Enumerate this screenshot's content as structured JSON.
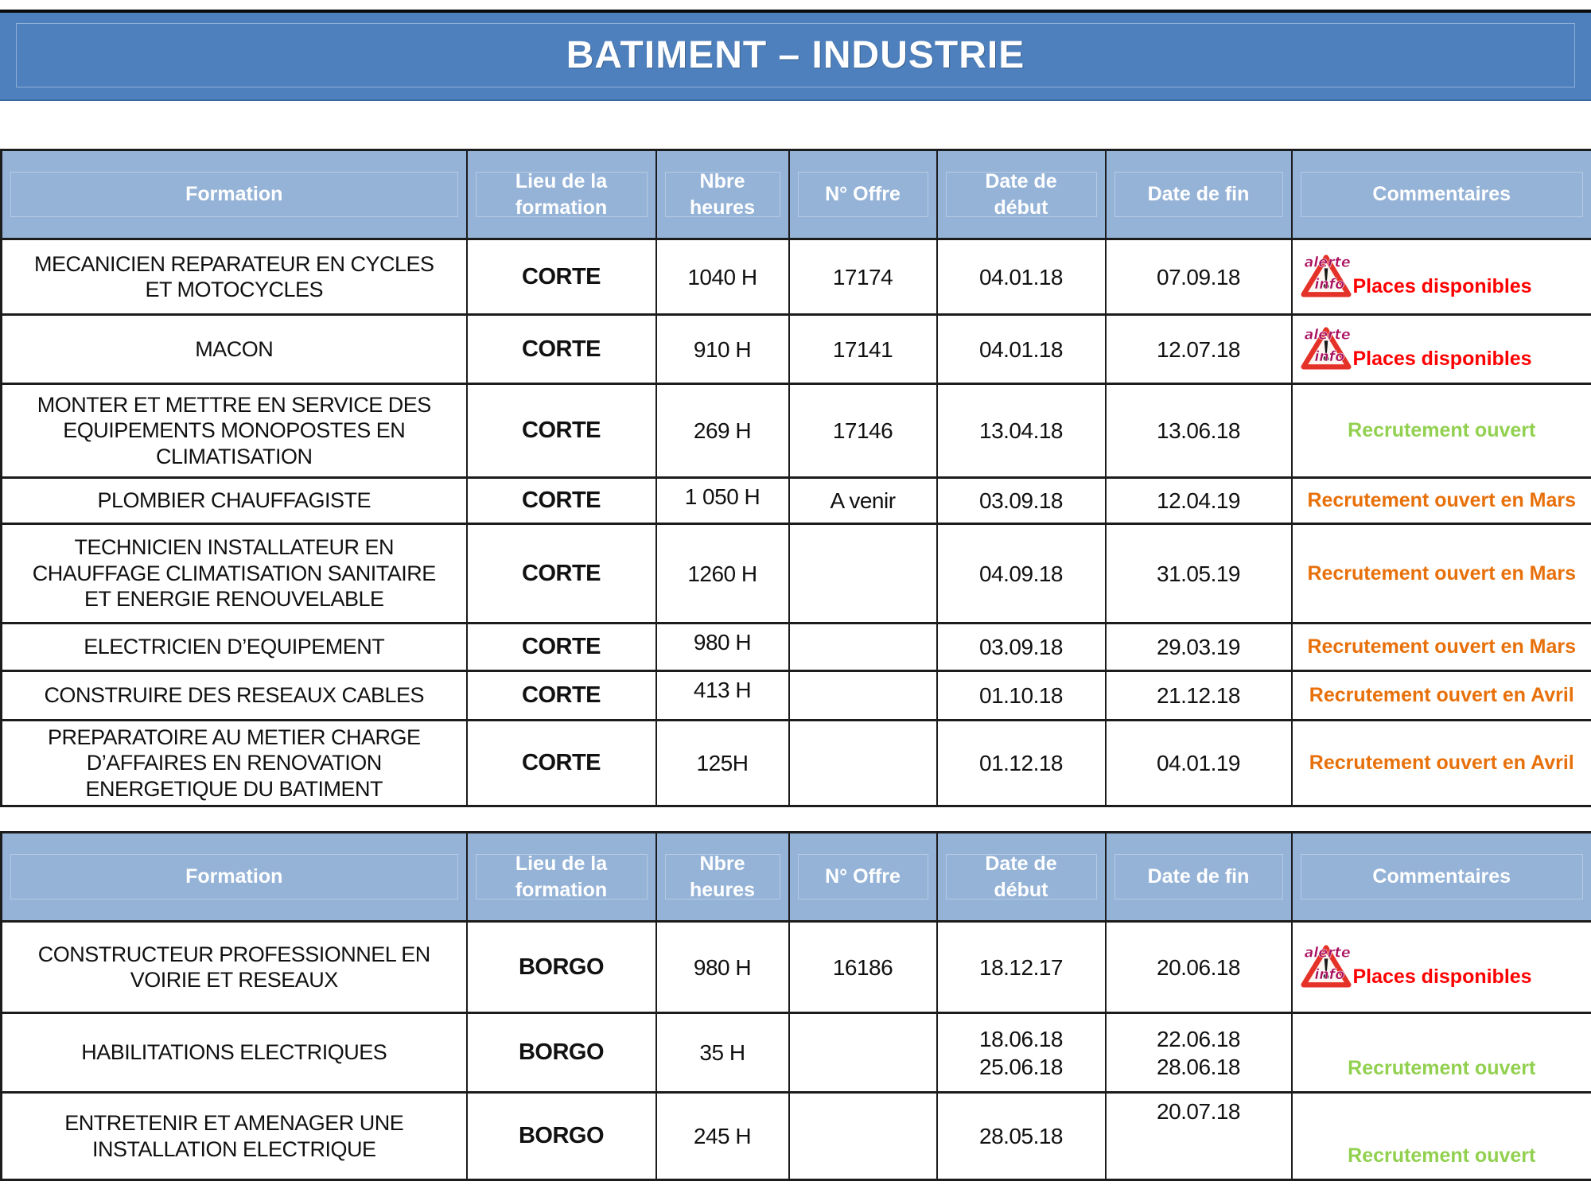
{
  "title": "BATIMENT – INDUSTRIE",
  "columns": [
    "Formation",
    "Lieu de la formation",
    "Nbre heures",
    "N° Offre",
    "Date de début",
    "Date de fin",
    "Commentaires"
  ],
  "theme": {
    "title_band_blue": "#4d80bd",
    "header_fill_blue": "#95b3d7",
    "border_black": "#1c1c1c",
    "comment_colors": {
      "alert": "#ff0000",
      "green": "#92d050",
      "orange": "#e8700a"
    },
    "alert_logo": {
      "icon": "alerte-info-icon",
      "word_top": "alerte",
      "word_bottom": "info",
      "triangle_red": "#e53228",
      "word_magenta": "#a9105f"
    }
  },
  "tables": [
    {
      "name": "formations-corte",
      "rows": [
        {
          "formation": "MECANICIEN REPARATEUR EN CYCLES ET MOTOCYCLES",
          "lieu": "CORTE",
          "heures": "1040 H",
          "offre": "17174",
          "debut": [
            "04.01.18"
          ],
          "fin": [
            "07.09.18"
          ],
          "comment": {
            "style": "alert",
            "text": "Places disponibles"
          }
        },
        {
          "formation": "MACON",
          "lieu": "CORTE",
          "heures": "910 H",
          "offre": "17141",
          "debut": [
            "04.01.18"
          ],
          "fin": [
            "12.07.18"
          ],
          "comment": {
            "style": "alert",
            "text": "Places disponibles"
          }
        },
        {
          "formation": "MONTER ET METTRE EN SERVICE DES EQUIPEMENTS MONOPOSTES EN CLIMATISATION",
          "lieu": "CORTE",
          "heures": "269 H",
          "offre": "17146",
          "debut": [
            "13.04.18"
          ],
          "fin": [
            "13.06.18"
          ],
          "comment": {
            "style": "green",
            "text": "Recrutement ouvert"
          }
        },
        {
          "formation": "PLOMBIER CHAUFFAGISTE",
          "lieu": "CORTE",
          "heures": "1 050 H",
          "heures_valign": "top",
          "offre": "A venir",
          "debut": [
            "03.09.18"
          ],
          "fin": [
            "12.04.19"
          ],
          "comment": {
            "style": "orange",
            "text": "Recrutement ouvert en Mars"
          }
        },
        {
          "formation": "TECHNICIEN INSTALLATEUR EN CHAUFFAGE CLIMATISATION SANITAIRE ET ENERGIE RENOUVELABLE",
          "lieu": "CORTE",
          "heures": "1260 H",
          "offre": "",
          "debut": [
            "04.09.18"
          ],
          "fin": [
            "31.05.19"
          ],
          "comment": {
            "style": "orange",
            "text": "Recrutement ouvert en Mars"
          }
        },
        {
          "formation": "ELECTRICIEN D’EQUIPEMENT",
          "lieu": "CORTE",
          "heures": "980 H",
          "heures_valign": "top",
          "offre": "",
          "debut": [
            "03.09.18"
          ],
          "fin": [
            "29.03.19"
          ],
          "comment": {
            "style": "orange",
            "text": "Recrutement ouvert en Mars"
          }
        },
        {
          "formation": "CONSTRUIRE DES RESEAUX CABLES",
          "lieu": "CORTE",
          "heures": "413 H",
          "heures_valign": "top",
          "offre": "",
          "debut": [
            "01.10.18"
          ],
          "fin": [
            "21.12.18"
          ],
          "comment": {
            "style": "orange",
            "text": "Recrutement ouvert en Avril"
          }
        },
        {
          "formation": "PREPARATOIRE AU METIER CHARGE D’AFFAIRES EN RENOVATION ENERGETIQUE DU BATIMENT",
          "lieu": "CORTE",
          "heures": "125H",
          "offre": "",
          "debut": [
            "01.12.18"
          ],
          "fin": [
            "04.01.19"
          ],
          "comment": {
            "style": "orange",
            "text": "Recrutement ouvert en Avril"
          }
        }
      ]
    },
    {
      "name": "formations-borgo",
      "rows": [
        {
          "formation": "CONSTRUCTEUR PROFESSIONNEL EN VOIRIE ET RESEAUX",
          "lieu": "BORGO",
          "heures": "980 H",
          "offre": "16186",
          "debut": [
            "18.12.17"
          ],
          "fin": [
            "20.06.18"
          ],
          "comment": {
            "style": "alert",
            "text": "Places disponibles"
          }
        },
        {
          "formation": "HABILITATIONS ELECTRIQUES",
          "lieu": "BORGO",
          "heures": "35 H",
          "offre": "",
          "debut": [
            "18.06.18",
            "25.06.18"
          ],
          "fin": [
            "22.06.18",
            "28.06.18"
          ],
          "comment": {
            "style": "green",
            "text": "Recrutement ouvert",
            "valign": "bottom"
          }
        },
        {
          "formation": "ENTRETENIR ET AMENAGER UNE INSTALLATION ELECTRIQUE",
          "lieu": "BORGO",
          "heures": "245 H",
          "offre": "",
          "debut": [
            "28.05.18"
          ],
          "fin": [
            "20.07.18"
          ],
          "fin_valign": "top",
          "comment": {
            "style": "green",
            "text": "Recrutement ouvert",
            "valign": "bottom"
          }
        }
      ]
    }
  ]
}
